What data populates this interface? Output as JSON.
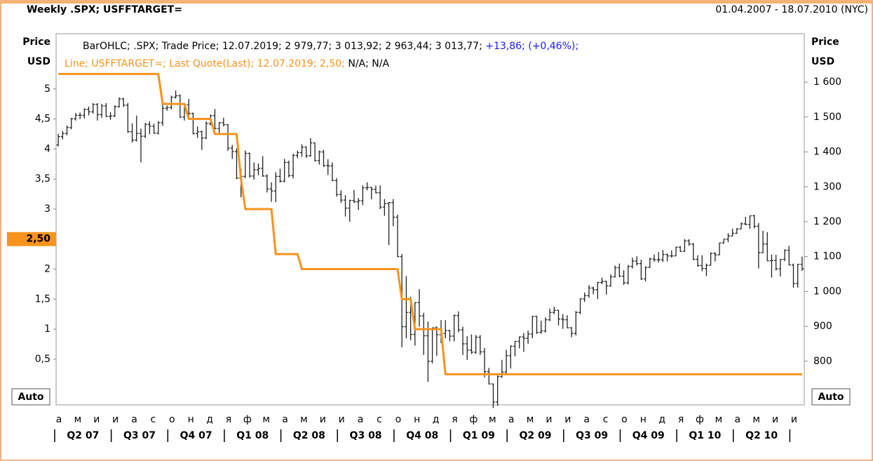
{
  "chart_data": {
    "type": "ohlc",
    "title": "Weekly .SPX; USFFTARGET=",
    "date_range": "01.04.2007 - 18.07.2010 (NYC)",
    "ylabel": "Price",
    "yunit": "USD",
    "y2label": "Price",
    "y2unit": "USD",
    "legend": {
      "bar_text": "BarOHLC; .SPX; Trade Price; 12.07.2019; 2 979,77; 3 013,92; 2 963,44; 3 013,77;",
      "bar_change": "+13,86; (+0,46%);",
      "line_text": "Line; USFFTARGET=; Last Quote(Last); 12.07.2019; 2,50;",
      "line_extra": "N/A; N/A"
    },
    "auto_label": "Auto",
    "ylim": [
      -0.26,
      5.92
    ],
    "yticks": [
      {
        "value": 0.5,
        "label": "0,5"
      },
      1,
      {
        "value": 1.5,
        "label": "1,5"
      },
      2,
      3,
      {
        "value": 3.5,
        "label": "3,5"
      },
      4,
      {
        "value": 4.5,
        "label": "4,5"
      },
      5
    ],
    "y2lim": [
      675,
      1739
    ],
    "y2ticks": [
      800,
      900,
      {
        "value": 1000,
        "label": "1 000"
      },
      {
        "value": 1100,
        "label": "1 100"
      },
      {
        "value": 1200,
        "label": "1 200"
      },
      {
        "value": 1300,
        "label": "1 300"
      },
      {
        "value": 1400,
        "label": "1 400"
      },
      {
        "value": 1500,
        "label": "1 500"
      },
      {
        "value": 1600,
        "label": "1 600"
      }
    ],
    "last_value": {
      "value": 2.5,
      "label": "2,50"
    },
    "months": [
      "а",
      "м",
      "и",
      "и",
      "а",
      "с",
      "о",
      "н",
      "д",
      "я",
      "ф",
      "м",
      "а",
      "м",
      "и",
      "и",
      "а",
      "с",
      "о",
      "н",
      "д",
      "я",
      "ф",
      "м",
      "а",
      "м",
      "и",
      "и",
      "а",
      "с",
      "о",
      "н",
      "д",
      "я",
      "ф",
      "м",
      "а",
      "м",
      "и",
      "и"
    ],
    "quarters": [
      "Q2 07",
      "Q3 07",
      "Q4 07",
      "Q1 08",
      "Q2 08",
      "Q3 08",
      "Q4 08",
      "Q1 09",
      "Q2 09",
      "Q3 09",
      "Q4 09",
      "Q1 10",
      "Q2 10"
    ],
    "series": [
      {
        "name": "USFFTARGET=",
        "type": "line",
        "color": "#f7931e",
        "axis": "y",
        "values": [
          5.25,
          5.25,
          5.25,
          5.25,
          5.25,
          5.25,
          5.25,
          5.25,
          5.25,
          5.25,
          5.25,
          5.25,
          5.25,
          5.25,
          5.25,
          5.25,
          5.25,
          5.25,
          5.25,
          5.25,
          5.25,
          5.25,
          5.25,
          5.25,
          4.75,
          4.75,
          4.75,
          4.75,
          4.75,
          4.75,
          4.5,
          4.5,
          4.5,
          4.5,
          4.5,
          4.5,
          4.25,
          4.25,
          4.25,
          4.25,
          4.25,
          4.25,
          3.5,
          3,
          3,
          3,
          3,
          3,
          3,
          3,
          2.25,
          2.25,
          2.25,
          2.25,
          2.25,
          2.25,
          2,
          2,
          2,
          2,
          2,
          2,
          2,
          2,
          2,
          2,
          2,
          2,
          2,
          2,
          2,
          2,
          2,
          2,
          2,
          2,
          2,
          2,
          2,
          1.5,
          1.5,
          1.5,
          1,
          1,
          1,
          1,
          1,
          1,
          1,
          0.25,
          0.25,
          0.25,
          0.25,
          0.25,
          0.25,
          0.25,
          0.25,
          0.25,
          0.25,
          0.25,
          0.25,
          0.25,
          0.25,
          0.25,
          0.25,
          0.25,
          0.25,
          0.25,
          0.25,
          0.25,
          0.25,
          0.25,
          0.25,
          0.25,
          0.25,
          0.25,
          0.25,
          0.25,
          0.25,
          0.25,
          0.25,
          0.25,
          0.25,
          0.25,
          0.25,
          0.25,
          0.25,
          0.25,
          0.25,
          0.25,
          0.25,
          0.25,
          0.25,
          0.25,
          0.25,
          0.25,
          0.25,
          0.25,
          0.25,
          0.25,
          0.25,
          0.25,
          0.25,
          0.25,
          0.25,
          0.25,
          0.25,
          0.25,
          0.25,
          0.25,
          0.25,
          0.25,
          0.25,
          0.25,
          0.25,
          0.25,
          0.25,
          0.25,
          0.25,
          0.25,
          0.25,
          0.25,
          0.25,
          0.25,
          0.25,
          0.25,
          0.25,
          0.25,
          0.25,
          0.25,
          0.25,
          0.25
        ]
      },
      {
        "name": ".SPX",
        "type": "ohlc",
        "color": "#222222",
        "axis": "y2",
        "open": [
          1420,
          1444,
          1453,
          1470,
          1495,
          1505,
          1505,
          1522,
          1515,
          1536,
          1507,
          1532,
          1502,
          1503,
          1530,
          1552,
          1534,
          1458,
          1434,
          1453,
          1445,
          1479,
          1474,
          1454,
          1484,
          1525,
          1527,
          1557,
          1561,
          1500,
          1535,
          1510,
          1453,
          1458,
          1440,
          1481,
          1504,
          1467,
          1484,
          1478,
          1411,
          1401,
          1325,
          1330,
          1396,
          1331,
          1349,
          1353,
          1331,
          1294,
          1288,
          1330,
          1316,
          1370,
          1332,
          1390,
          1398,
          1414,
          1389,
          1426,
          1375,
          1400,
          1361,
          1360,
          1318,
          1278,
          1262,
          1239,
          1261,
          1257,
          1260,
          1297,
          1298,
          1293,
          1283,
          1242,
          1252,
          1255,
          1213,
          1100,
          899,
          940,
          877,
          968,
          930,
          873,
          800,
          896,
          876,
          880,
          888,
          872,
          931,
          890,
          850,
          832,
          826,
          869,
          827,
          770,
          735,
          683,
          756,
          769,
          816,
          843,
          857,
          870,
          866,
          878,
          929,
          883,
          887,
          919,
          940,
          946,
          921,
          919,
          896,
          880,
          940,
          979,
          988,
          1010,
          1005,
          1026,
          1029,
          1016,
          1042,
          1068,
          1044,
          1025,
          1072,
          1087,
          1080,
          1036,
          1069,
          1093,
          1091,
          1091,
          1106,
          1102,
          1102,
          1127,
          1115,
          1145,
          1136,
          1092,
          1074,
          1066,
          1075,
          1109,
          1105,
          1139,
          1150,
          1159,
          1167,
          1179,
          1194,
          1192,
          1217,
          1187,
          1111,
          1136,
          1088,
          1089,
          1065,
          1092,
          1118,
          1076,
          1023,
          1078
        ],
        "high": [
          1452,
          1460,
          1476,
          1498,
          1512,
          1513,
          1525,
          1530,
          1540,
          1540,
          1538,
          1540,
          1514,
          1534,
          1556,
          1555,
          1540,
          1482,
          1504,
          1467,
          1483,
          1488,
          1481,
          1488,
          1538,
          1533,
          1561,
          1576,
          1565,
          1536,
          1552,
          1513,
          1473,
          1461,
          1488,
          1507,
          1523,
          1485,
          1498,
          1480,
          1420,
          1410,
          1352,
          1404,
          1398,
          1370,
          1367,
          1388,
          1336,
          1313,
          1342,
          1352,
          1380,
          1375,
          1395,
          1404,
          1422,
          1416,
          1440,
          1427,
          1404,
          1406,
          1379,
          1370,
          1325,
          1290,
          1276,
          1263,
          1291,
          1268,
          1304,
          1313,
          1300,
          1304,
          1304,
          1265,
          1256,
          1265,
          1220,
          1108,
          1044,
          985,
          969,
          1007,
          939,
          914,
          896,
          900,
          918,
          918,
          890,
          934,
          943,
          899,
          872,
          877,
          875,
          875,
          838,
          781,
          736,
          760,
          804,
          833,
          846,
          858,
          871,
          881,
          888,
          930,
          930,
          916,
          926,
          951,
          956,
          947,
          935,
          932,
          898,
          944,
          980,
          997,
          1018,
          1014,
          1028,
          1040,
          1031,
          1049,
          1074,
          1080,
          1061,
          1076,
          1097,
          1101,
          1091,
          1072,
          1097,
          1106,
          1113,
          1119,
          1109,
          1118,
          1128,
          1130,
          1150,
          1150,
          1139,
          1104,
          1104,
          1080,
          1112,
          1113,
          1140,
          1150,
          1167,
          1180,
          1182,
          1198,
          1214,
          1217,
          1220,
          1196,
          1174,
          1170,
          1106,
          1105,
          1093,
          1121,
          1131,
          1080,
          1079,
          1100
        ],
        "low": [
          1416,
          1436,
          1448,
          1465,
          1490,
          1494,
          1496,
          1505,
          1510,
          1490,
          1498,
          1500,
          1492,
          1500,
          1527,
          1529,
          1455,
          1427,
          1430,
          1370,
          1440,
          1451,
          1452,
          1450,
          1475,
          1518,
          1522,
          1553,
          1498,
          1490,
          1505,
          1450,
          1440,
          1406,
          1437,
          1476,
          1465,
          1451,
          1473,
          1403,
          1380,
          1322,
          1270,
          1325,
          1326,
          1321,
          1333,
          1329,
          1284,
          1257,
          1256,
          1312,
          1313,
          1327,
          1324,
          1382,
          1386,
          1383,
          1386,
          1373,
          1364,
          1357,
          1334,
          1316,
          1272,
          1254,
          1215,
          1200,
          1254,
          1234,
          1248,
          1290,
          1264,
          1281,
          1236,
          1217,
          1133,
          1187,
          1099,
          840,
          866,
          860,
          845,
          899,
          818,
          741,
          794,
          816,
          852,
          866,
          857,
          857,
          883,
          818,
          804,
          821,
          821,
          818,
          754,
          734,
          666,
          672,
          753,
          764,
          779,
          814,
          837,
          827,
          850,
          866,
          878,
          879,
          882,
          915,
          935,
          903,
          893,
          895,
          869,
          874,
          935,
          970,
          982,
          992,
          978,
          1021,
          991,
          1014,
          1040,
          1041,
          1019,
          1020,
          1066,
          1074,
          1033,
          1029,
          1068,
          1085,
          1083,
          1085,
          1086,
          1097,
          1102,
          1114,
          1114,
          1131,
          1090,
          1071,
          1058,
          1044,
          1074,
          1086,
          1104,
          1137,
          1141,
          1158,
          1165,
          1179,
          1190,
          1180,
          1181,
          1066,
          1110,
          1087,
          1040,
          1060,
          1043,
          1087,
          1075,
          1011,
          1011,
          1059
        ],
        "close": [
          1444,
          1453,
          1470,
          1495,
          1505,
          1505,
          1522,
          1515,
          1536,
          1507,
          1532,
          1502,
          1503,
          1530,
          1552,
          1534,
          1458,
          1434,
          1453,
          1445,
          1479,
          1474,
          1454,
          1484,
          1525,
          1527,
          1557,
          1561,
          1500,
          1535,
          1510,
          1453,
          1458,
          1440,
          1481,
          1504,
          1467,
          1484,
          1478,
          1411,
          1401,
          1325,
          1330,
          1396,
          1331,
          1349,
          1353,
          1331,
          1294,
          1288,
          1330,
          1316,
          1370,
          1332,
          1390,
          1398,
          1414,
          1389,
          1426,
          1375,
          1400,
          1361,
          1360,
          1318,
          1278,
          1262,
          1239,
          1261,
          1257,
          1260,
          1297,
          1298,
          1293,
          1283,
          1242,
          1252,
          1255,
          1213,
          1100,
          899,
          940,
          877,
          968,
          930,
          873,
          800,
          896,
          876,
          880,
          888,
          872,
          931,
          890,
          850,
          832,
          826,
          869,
          827,
          770,
          735,
          683,
          756,
          769,
          816,
          843,
          857,
          870,
          866,
          878,
          929,
          883,
          887,
          919,
          940,
          946,
          921,
          919,
          896,
          880,
          940,
          979,
          988,
          1010,
          1005,
          1026,
          1029,
          1016,
          1042,
          1068,
          1044,
          1025,
          1072,
          1087,
          1080,
          1036,
          1069,
          1093,
          1091,
          1091,
          1106,
          1102,
          1102,
          1127,
          1115,
          1145,
          1136,
          1092,
          1074,
          1066,
          1075,
          1109,
          1105,
          1139,
          1150,
          1159,
          1167,
          1179,
          1194,
          1192,
          1217,
          1187,
          1111,
          1136,
          1088,
          1089,
          1065,
          1092,
          1118,
          1076,
          1023,
          1078,
          1065
        ]
      }
    ]
  }
}
